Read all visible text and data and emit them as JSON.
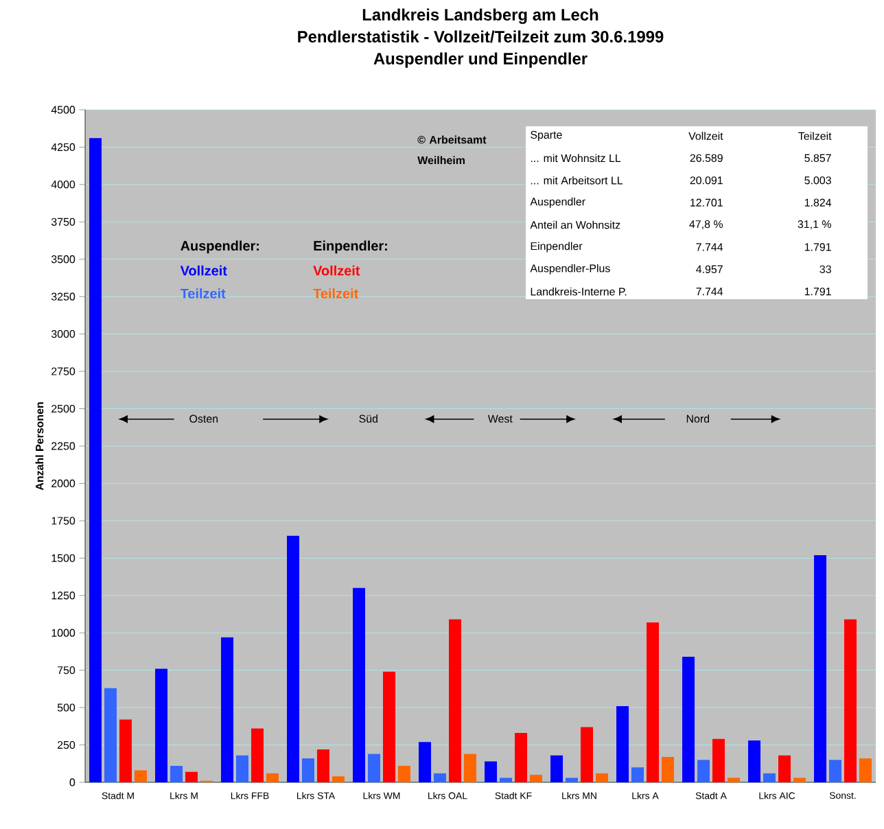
{
  "chart_data": {
    "type": "bar",
    "title": "Landkreis Landsberg am Lech",
    "subtitle": "Pendlerstatistik - Vollzeit/Teilzeit zum 30.6.1999",
    "ylabel": "Anzahl Personen",
    "categories": [
      "Stadt M",
      "Lkrs  M",
      "Lkrs FFB",
      "Lkrs STA",
      "Lkrs WM",
      "Lkrs OAL",
      "Stadt KF",
      "Lkrs MN",
      "Lkrs  A",
      "Stadt A",
      "Lkrs AIC",
      "Sonst."
    ],
    "series": [
      {
        "name": "Vollzeit",
        "color": "#0000ff",
        "values": [
          4310,
          760,
          970,
          1650,
          1300,
          270,
          140,
          180,
          510,
          840,
          280,
          1520
        ]
      },
      {
        "name": "Teilzeit",
        "color": "#3366ff",
        "values": [
          630,
          110,
          180,
          160,
          190,
          60,
          30,
          30,
          100,
          150,
          60,
          150
        ]
      },
      {
        "name": "Vollzeit",
        "color": "#ff0000",
        "values": [
          420,
          70,
          360,
          220,
          740,
          1090,
          330,
          370,
          1070,
          290,
          180,
          1090
        ]
      },
      {
        "name": "Teilzeit",
        "color": "#ff6600",
        "values": [
          80,
          10,
          60,
          40,
          110,
          190,
          50,
          60,
          170,
          30,
          30,
          160
        ]
      }
    ],
    "ylim": [
      0,
      4500
    ],
    "yticks": [
      0,
      250,
      500,
      750,
      1000,
      1250,
      1500,
      1750,
      2000,
      2250,
      2500,
      2750,
      3000,
      3250,
      3500,
      3750,
      4000,
      4250,
      4500
    ],
    "grid": "y",
    "annotations": [
      "Auspendler:",
      "Einpendler:",
      "© Arbeitsamt Weilheim",
      "Osten",
      "Süd",
      "West",
      "Nord",
      "Sparte",
      "Vollzeit",
      "Teilzeit",
      "... mit Wohnsitz LL",
      "26.589",
      "5.857",
      "... mit Arbeitsort LL",
      "20.091",
      "5.003",
      "Auspendler",
      "12.701",
      "1.824",
      "Anteil an Wohnsitz",
      "47,8 %",
      "31,1 %",
      "Einpendler",
      "7.744",
      "1.791",
      "Auspendler-Plus",
      "4.957",
      "33",
      "Landkreis-Interne P.",
      "7.744",
      "1.791",
      "Auspendler und Einpendler"
    ]
  }
}
